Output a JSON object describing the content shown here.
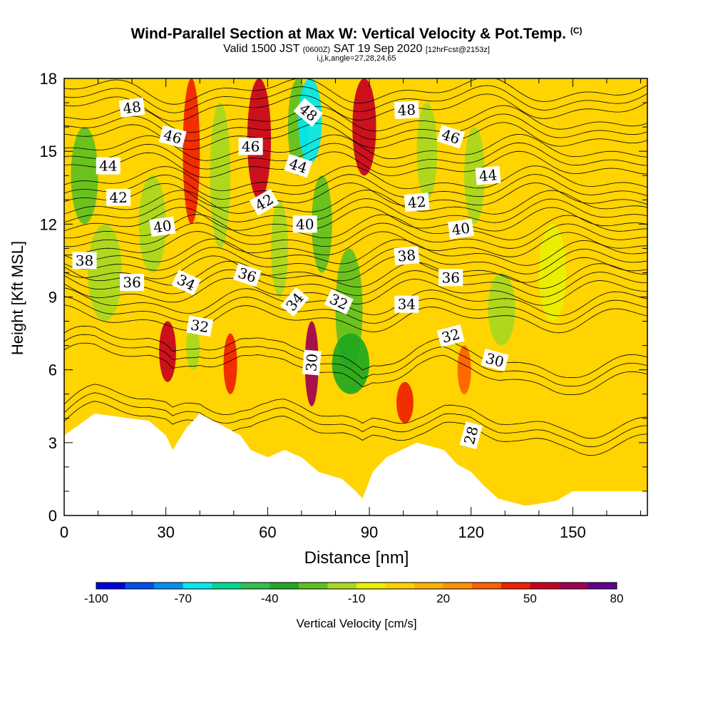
{
  "header": {
    "title": "Wind-Parallel Section at Max W: Vertical Velocity & Pot.Temp.",
    "title_tag": "(C)",
    "valid_a": "Valid 1500 JST",
    "valid_z": "(0600Z)",
    "valid_b": "SAT 19 Sep 2020",
    "valid_fcst": "[12hrFcst@2153z]",
    "indices": "i,j,k,angle=27,28,24,65"
  },
  "chart_data": {
    "type": "heatmap",
    "xlabel": "Distance [nm]",
    "ylabel": "Height [Kft MSL]",
    "xlim": [
      0,
      172
    ],
    "ylim": [
      0,
      18
    ],
    "x_ticks": [
      0,
      30,
      60,
      90,
      120,
      150
    ],
    "y_ticks": [
      0,
      3,
      6,
      9,
      12,
      15,
      18
    ],
    "colorbar": {
      "label": "Vertical Velocity [cm/s]",
      "levels": [
        -100,
        -90,
        -80,
        -70,
        -60,
        -50,
        -40,
        -30,
        -20,
        -10,
        0,
        10,
        20,
        30,
        40,
        50,
        60,
        70,
        80
      ],
      "tick_labels": [
        "-100",
        "-70",
        "-40",
        "-10",
        "20",
        "50",
        "80"
      ],
      "colors": [
        "#0000e0",
        "#0050f0",
        "#0090f0",
        "#00e8f0",
        "#00d890",
        "#30c050",
        "#20a820",
        "#60c020",
        "#a8d820",
        "#e8f000",
        "#ffd000",
        "#ffb000",
        "#ff9000",
        "#ff6000",
        "#f02000",
        "#c80020",
        "#a00050",
        "#600090"
      ]
    },
    "velocity_cells": [
      {
        "x": [
          2,
          10
        ],
        "y": [
          12,
          16
        ],
        "w": -25
      },
      {
        "x": [
          7,
          17
        ],
        "y": [
          8,
          12
        ],
        "w": -15
      },
      {
        "x": [
          22,
          30
        ],
        "y": [
          10,
          14
        ],
        "w": -15
      },
      {
        "x": [
          35,
          40
        ],
        "y": [
          12,
          18
        ],
        "w": 45
      },
      {
        "x": [
          43,
          49
        ],
        "y": [
          11,
          17
        ],
        "w": -20
      },
      {
        "x": [
          54,
          61
        ],
        "y": [
          13,
          18
        ],
        "w": 50
      },
      {
        "x": [
          61,
          66
        ],
        "y": [
          9,
          13
        ],
        "w": -20
      },
      {
        "x": [
          66,
          72
        ],
        "y": [
          14,
          18
        ],
        "w": -30
      },
      {
        "x": [
          69,
          76
        ],
        "y": [
          14.5,
          18
        ],
        "w": -65
      },
      {
        "x": [
          73,
          79
        ],
        "y": [
          10,
          14
        ],
        "w": -25
      },
      {
        "x": [
          80,
          88
        ],
        "y": [
          6,
          11
        ],
        "w": -30
      },
      {
        "x": [
          85,
          92
        ],
        "y": [
          14,
          18
        ],
        "w": 55
      },
      {
        "x": [
          104,
          110
        ],
        "y": [
          13,
          17
        ],
        "w": -15
      },
      {
        "x": [
          118,
          124
        ],
        "y": [
          12,
          16
        ],
        "w": -20
      },
      {
        "x": [
          125,
          133
        ],
        "y": [
          7,
          10
        ],
        "w": -20
      },
      {
        "x": [
          140,
          148
        ],
        "y": [
          8,
          12
        ],
        "w": -10
      },
      {
        "x": [
          28,
          33
        ],
        "y": [
          5.5,
          8
        ],
        "w": 55
      },
      {
        "x": [
          47,
          51
        ],
        "y": [
          5,
          7.5
        ],
        "w": 45
      },
      {
        "x": [
          71,
          75
        ],
        "y": [
          4.5,
          8
        ],
        "w": 60
      },
      {
        "x": [
          98,
          103
        ],
        "y": [
          3.8,
          5.5
        ],
        "w": 45
      },
      {
        "x": [
          116,
          120
        ],
        "y": [
          5,
          7
        ],
        "w": 35
      },
      {
        "x": [
          36,
          40
        ],
        "y": [
          6,
          7.8
        ],
        "w": -20
      },
      {
        "x": [
          79,
          90
        ],
        "y": [
          5,
          7.5
        ],
        "w": -35
      }
    ],
    "terrain_top_kft": [
      [
        0,
        3.3
      ],
      [
        3,
        3.6
      ],
      [
        6,
        3.9
      ],
      [
        9,
        4.2
      ],
      [
        25,
        3.9
      ],
      [
        30,
        3.3
      ],
      [
        32,
        2.7
      ],
      [
        36,
        3.6
      ],
      [
        40,
        4.2
      ],
      [
        48,
        3.6
      ],
      [
        52,
        3.3
      ],
      [
        55,
        2.7
      ],
      [
        60,
        2.4
      ],
      [
        65,
        2.7
      ],
      [
        70,
        2.4
      ],
      [
        75,
        1.8
      ],
      [
        82,
        1.5
      ],
      [
        86,
        1.0
      ],
      [
        88,
        0.7
      ],
      [
        91,
        1.8
      ],
      [
        95,
        2.4
      ],
      [
        104,
        3.0
      ],
      [
        112,
        2.7
      ],
      [
        116,
        2.1
      ],
      [
        120,
        1.8
      ],
      [
        124,
        1.2
      ],
      [
        128,
        0.7
      ],
      [
        136,
        0.4
      ],
      [
        145,
        0.6
      ],
      [
        150,
        1.0
      ],
      [
        172,
        1.0
      ]
    ],
    "theta_contours": [
      {
        "label": "28",
        "base_kft": 3.6
      },
      {
        "label": "30",
        "base_kft": 6.1
      },
      {
        "label": "32",
        "base_kft": 8.1
      },
      {
        "label": "34",
        "base_kft": 9.2
      },
      {
        "label": "36",
        "base_kft": 10.1
      },
      {
        "label": "38",
        "base_kft": 11.1
      },
      {
        "label": "40",
        "base_kft": 12.1
      },
      {
        "label": "42",
        "base_kft": 13.1
      },
      {
        "label": "44",
        "base_kft": 14.4
      },
      {
        "label": "46",
        "base_kft": 15.6
      },
      {
        "label": "48",
        "base_kft": 16.8
      }
    ],
    "contour_labels": [
      {
        "text": "48",
        "x": 20,
        "y": 16.8,
        "rot": -8
      },
      {
        "text": "46",
        "x": 32,
        "y": 15.6,
        "rot": 15
      },
      {
        "text": "44",
        "x": 13,
        "y": 14.4,
        "rot": 0
      },
      {
        "text": "42",
        "x": 16,
        "y": 13.1,
        "rot": 0
      },
      {
        "text": "40",
        "x": 29,
        "y": 11.9,
        "rot": -8
      },
      {
        "text": "38",
        "x": 6,
        "y": 10.5,
        "rot": 0
      },
      {
        "text": "36",
        "x": 20,
        "y": 9.6,
        "rot": 0
      },
      {
        "text": "34",
        "x": 36,
        "y": 9.6,
        "rot": 25
      },
      {
        "text": "32",
        "x": 40,
        "y": 7.8,
        "rot": 10
      },
      {
        "text": "46",
        "x": 55,
        "y": 15.2,
        "rot": 0
      },
      {
        "text": "42",
        "x": 59,
        "y": 12.9,
        "rot": -30
      },
      {
        "text": "36",
        "x": 54,
        "y": 9.9,
        "rot": 18
      },
      {
        "text": "44",
        "x": 69,
        "y": 14.4,
        "rot": 18
      },
      {
        "text": "40",
        "x": 71,
        "y": 12.0,
        "rot": 0
      },
      {
        "text": "34",
        "x": 68,
        "y": 8.8,
        "rot": -50
      },
      {
        "text": "30",
        "x": 73,
        "y": 6.3,
        "rot": -85
      },
      {
        "text": "48",
        "x": 72,
        "y": 16.6,
        "rot": 40
      },
      {
        "text": "32",
        "x": 81,
        "y": 8.8,
        "rot": 25
      },
      {
        "text": "48",
        "x": 101,
        "y": 16.7,
        "rot": -3
      },
      {
        "text": "42",
        "x": 104,
        "y": 12.9,
        "rot": -5
      },
      {
        "text": "38",
        "x": 101,
        "y": 10.7,
        "rot": -5
      },
      {
        "text": "34",
        "x": 101,
        "y": 8.7,
        "rot": 0
      },
      {
        "text": "46",
        "x": 114,
        "y": 15.6,
        "rot": 18
      },
      {
        "text": "40",
        "x": 117,
        "y": 11.8,
        "rot": -8
      },
      {
        "text": "36",
        "x": 114,
        "y": 9.8,
        "rot": 0
      },
      {
        "text": "32",
        "x": 114,
        "y": 7.4,
        "rot": -15
      },
      {
        "text": "44",
        "x": 125,
        "y": 14.0,
        "rot": -5
      },
      {
        "text": "30",
        "x": 127,
        "y": 6.4,
        "rot": 15
      },
      {
        "text": "28",
        "x": 120,
        "y": 3.3,
        "rot": -75
      }
    ]
  }
}
